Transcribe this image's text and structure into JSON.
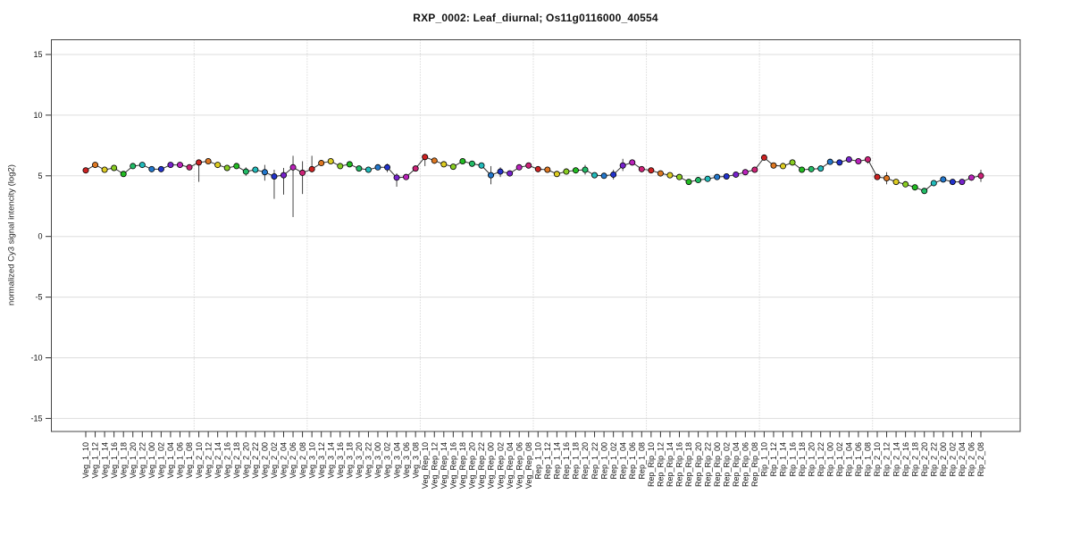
{
  "chart_data": {
    "type": "line",
    "title": "RXP_0002: Leaf_diurnal; Os11g0116000_40554",
    "ylabel": "normalized Cy3 signal intencity (log2)",
    "xlabel": "",
    "ylim": [
      -16.2,
      16.2
    ],
    "yticks": [
      15,
      10,
      5,
      0,
      -5,
      -10,
      -15
    ],
    "grid": "horizontal solid lines at y ticks; vertical dotted separators between sample groups",
    "legend": "none",
    "groups": [
      "Veg_1",
      "Veg_2",
      "Veg_3",
      "Veg_Rep",
      "Rep_1",
      "Rep_Rip",
      "Rip_1",
      "Rip_2"
    ],
    "times": [
      "10",
      "12",
      "14",
      "16",
      "18",
      "20",
      "22",
      "00",
      "02",
      "04",
      "06",
      "08"
    ],
    "point_color_cycle": [
      "#cc2222",
      "#dd7722",
      "#ddcc22",
      "#88cc22",
      "#22bb22",
      "#22bb66",
      "#22bbbb",
      "#2277cc",
      "#2233cc",
      "#7722cc",
      "#bb22bb",
      "#cc2277"
    ],
    "line_color": "#333333",
    "error_bar_color": "#444444",
    "grid_color": "#dddddd",
    "separator_color": "#c8c8c8",
    "box_color": "#444444",
    "text_color": "#111111",
    "categories": [
      "Veg_1_10",
      "Veg_1_12",
      "Veg_1_14",
      "Veg_1_16",
      "Veg_1_18",
      "Veg_1_20",
      "Veg_1_22",
      "Veg_1_00",
      "Veg_1_02",
      "Veg_1_04",
      "Veg_1_06",
      "Veg_1_08",
      "Veg_2_10",
      "Veg_2_12",
      "Veg_2_14",
      "Veg_2_16",
      "Veg_2_18",
      "Veg_2_20",
      "Veg_2_22",
      "Veg_2_00",
      "Veg_2_02",
      "Veg_2_04",
      "Veg_2_06",
      "Veg_2_08",
      "Veg_3_10",
      "Veg_3_12",
      "Veg_3_14",
      "Veg_3_16",
      "Veg_3_18",
      "Veg_3_20",
      "Veg_3_22",
      "Veg_3_00",
      "Veg_3_02",
      "Veg_3_04",
      "Veg_3_06",
      "Veg_3_08",
      "Veg_Rep_10",
      "Veg_Rep_12",
      "Veg_Rep_14",
      "Veg_Rep_16",
      "Veg_Rep_18",
      "Veg_Rep_20",
      "Veg_Rep_22",
      "Veg_Rep_00",
      "Veg_Rep_02",
      "Veg_Rep_04",
      "Veg_Rep_06",
      "Veg_Rep_08",
      "Rep_1_10",
      "Rep_1_12",
      "Rep_1_14",
      "Rep_1_16",
      "Rep_1_18",
      "Rep_1_20",
      "Rep_1_22",
      "Rep_1_00",
      "Rep_1_02",
      "Rep_1_04",
      "Rep_1_06",
      "Rep_1_08",
      "Rep_Rip_10",
      "Rep_Rip_12",
      "Rep_Rip_14",
      "Rep_Rip_16",
      "Rep_Rip_18",
      "Rep_Rip_20",
      "Rep_Rip_22",
      "Rep_Rip_00",
      "Rep_Rip_02",
      "Rep_Rip_04",
      "Rep_Rip_06",
      "Rep_Rip_08",
      "Rip_1_10",
      "Rip_1_12",
      "Rip_1_14",
      "Rip_1_16",
      "Rip_1_18",
      "Rip_1_20",
      "Rip_1_22",
      "Rip_1_00",
      "Rip_1_02",
      "Rip_1_04",
      "Rip_1_06",
      "Rip_1_08",
      "Rip_2_10",
      "Rip_2_12",
      "Rip_2_14",
      "Rip_2_16",
      "Rip_2_18",
      "Rip_2_20",
      "Rip_2_22",
      "Rip_2_00",
      "Rip_2_02",
      "Rip_2_04",
      "Rip_2_06",
      "Rip_2_08"
    ],
    "values": [
      5.45,
      5.9,
      5.5,
      5.65,
      5.15,
      5.8,
      5.9,
      5.55,
      5.55,
      5.9,
      5.9,
      5.7,
      6.1,
      6.2,
      5.9,
      5.65,
      5.8,
      5.35,
      5.5,
      5.3,
      4.95,
      5.05,
      5.7,
      5.25,
      5.55,
      6.05,
      6.2,
      5.8,
      5.95,
      5.6,
      5.5,
      5.7,
      5.7,
      4.85,
      4.9,
      5.6,
      6.55,
      6.25,
      5.95,
      5.75,
      6.2,
      6.0,
      5.85,
      5.05,
      5.35,
      5.2,
      5.7,
      5.85,
      5.55,
      5.5,
      5.15,
      5.35,
      5.45,
      5.5,
      5.05,
      5.0,
      5.1,
      5.85,
      6.1,
      5.55,
      5.45,
      5.2,
      5.05,
      4.9,
      4.5,
      4.65,
      4.75,
      4.9,
      4.95,
      5.1,
      5.3,
      5.5,
      6.5,
      5.85,
      5.8,
      6.1,
      5.5,
      5.55,
      5.6,
      6.15,
      6.1,
      6.35,
      6.2,
      6.35,
      4.9,
      4.8,
      4.5,
      4.3,
      4.05,
      3.75,
      4.4,
      4.7,
      4.5,
      4.5,
      4.85,
      5.0
    ],
    "error_bars": {
      "Veg_2_10": [
        4.5,
        6.3
      ],
      "Veg_2_20": [
        5.0,
        5.7
      ],
      "Veg_2_00": [
        4.6,
        5.9
      ],
      "Veg_2_02": [
        3.1,
        5.5
      ],
      "Veg_2_04": [
        3.45,
        5.65
      ],
      "Veg_2_06": [
        1.6,
        6.65
      ],
      "Veg_2_08": [
        3.5,
        6.2
      ],
      "Veg_3_10": [
        5.3,
        6.65
      ],
      "Veg_3_02": [
        5.3,
        6.0
      ],
      "Veg_3_04": [
        4.1,
        5.2
      ],
      "Veg_Rep_10": [
        5.8,
        6.8
      ],
      "Veg_Rep_00": [
        4.3,
        5.8
      ],
      "Veg_Rep_02": [
        4.9,
        5.7
      ],
      "Rep_1_20": [
        5.1,
        5.9
      ],
      "Rep_1_02": [
        4.7,
        5.5
      ],
      "Rep_1_04": [
        5.4,
        6.4
      ],
      "Rip_1_08": [
        6.0,
        6.6
      ],
      "Rip_2_12": [
        4.3,
        5.3
      ],
      "Rip_2_08": [
        4.5,
        5.5
      ]
    }
  }
}
